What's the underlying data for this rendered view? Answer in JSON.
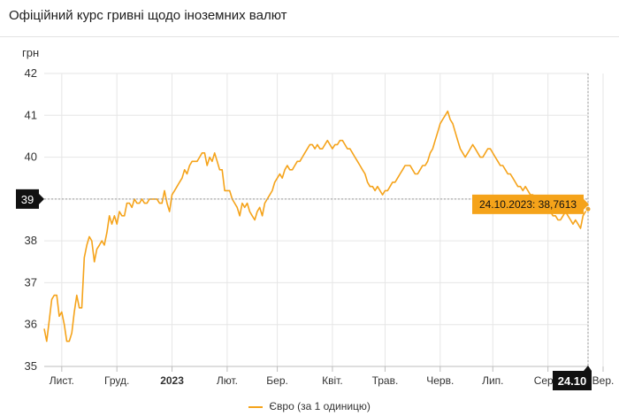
{
  "header": {
    "title": "Офіційний курс гривні щодо іноземних валют"
  },
  "chart_data": {
    "type": "line",
    "ylabel": "грн",
    "ylim": [
      35,
      42
    ],
    "yticks": [
      "35",
      "36",
      "37",
      "38",
      "39",
      "40",
      "41",
      "42"
    ],
    "xticks": [
      {
        "label": "Лист.",
        "index": 7,
        "bold": false
      },
      {
        "label": "Груд.",
        "index": 29,
        "bold": false
      },
      {
        "label": "2023",
        "index": 51,
        "bold": true
      },
      {
        "label": "Лют.",
        "index": 73,
        "bold": false
      },
      {
        "label": "Бер.",
        "index": 93,
        "bold": false
      },
      {
        "label": "Квіт.",
        "index": 115,
        "bold": false
      },
      {
        "label": "Трав.",
        "index": 136,
        "bold": false
      },
      {
        "label": "Черв.",
        "index": 158,
        "bold": false
      },
      {
        "label": "Лип.",
        "index": 179,
        "bold": false
      },
      {
        "label": "Серп.",
        "index": 201,
        "bold": false
      },
      {
        "label": "Вер.",
        "index": 223,
        "bold": false
      }
    ],
    "grid": true,
    "series": [
      {
        "name": "Євро (за 1 одиницю)",
        "color": "#f5a31a",
        "values": [
          35.9,
          35.6,
          36.1,
          36.6,
          36.7,
          36.7,
          36.2,
          36.3,
          36.0,
          35.6,
          35.6,
          35.8,
          36.3,
          36.7,
          36.4,
          36.4,
          37.6,
          37.9,
          38.1,
          38.0,
          37.5,
          37.8,
          37.9,
          38.0,
          37.9,
          38.2,
          38.6,
          38.4,
          38.6,
          38.4,
          38.7,
          38.6,
          38.6,
          38.9,
          38.9,
          38.8,
          39.0,
          38.9,
          38.9,
          39.0,
          38.9,
          38.9,
          39.0,
          39.0,
          39.0,
          39.0,
          38.9,
          38.9,
          39.2,
          38.9,
          38.7,
          39.1,
          39.2,
          39.3,
          39.4,
          39.5,
          39.7,
          39.6,
          39.8,
          39.9,
          39.9,
          39.9,
          40.0,
          40.1,
          40.1,
          39.8,
          40.0,
          39.9,
          40.1,
          39.9,
          39.7,
          39.7,
          39.2,
          39.2,
          39.2,
          39.0,
          38.9,
          38.8,
          38.6,
          38.9,
          38.8,
          38.9,
          38.7,
          38.6,
          38.5,
          38.7,
          38.8,
          38.6,
          38.9,
          39.0,
          39.1,
          39.2,
          39.4,
          39.5,
          39.6,
          39.5,
          39.7,
          39.8,
          39.7,
          39.7,
          39.8,
          39.9,
          39.9,
          40.0,
          40.1,
          40.2,
          40.3,
          40.3,
          40.2,
          40.3,
          40.2,
          40.2,
          40.3,
          40.4,
          40.3,
          40.2,
          40.3,
          40.3,
          40.4,
          40.4,
          40.3,
          40.2,
          40.2,
          40.1,
          40.0,
          39.9,
          39.8,
          39.7,
          39.6,
          39.4,
          39.3,
          39.3,
          39.2,
          39.3,
          39.2,
          39.1,
          39.2,
          39.2,
          39.3,
          39.4,
          39.4,
          39.5,
          39.6,
          39.7,
          39.8,
          39.8,
          39.8,
          39.7,
          39.6,
          39.6,
          39.7,
          39.8,
          39.8,
          39.9,
          40.1,
          40.2,
          40.4,
          40.6,
          40.8,
          40.9,
          41.0,
          41.1,
          40.9,
          40.8,
          40.6,
          40.4,
          40.2,
          40.1,
          40.0,
          40.1,
          40.2,
          40.3,
          40.2,
          40.1,
          40.0,
          40.0,
          40.1,
          40.2,
          40.2,
          40.1,
          40.0,
          39.9,
          39.8,
          39.8,
          39.7,
          39.6,
          39.6,
          39.5,
          39.4,
          39.3,
          39.3,
          39.2,
          39.3,
          39.2,
          39.1,
          39.1,
          39.0,
          39.0,
          38.9,
          38.9,
          38.8,
          38.8,
          38.7,
          38.6,
          38.6,
          38.5,
          38.5,
          38.6,
          38.7,
          38.6,
          38.5,
          38.4,
          38.5,
          38.4,
          38.3,
          38.6,
          38.7,
          38.76
        ],
        "last_label": "24.10.2023: 38,7613"
      }
    ],
    "crosshair": {
      "y_value": 39,
      "y_label": "39",
      "x_label": "24.10"
    }
  }
}
